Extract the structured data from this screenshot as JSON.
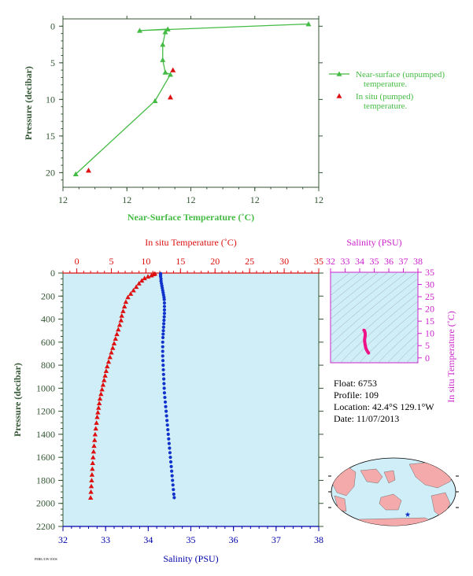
{
  "colors": {
    "near_surface": "#44bb44",
    "in_situ": "#dd1111",
    "salinity": "#1133cc",
    "salinity_axis": "#0000aa",
    "magenta": "#cc22cc",
    "pink_trace": "#ee1188",
    "axis_green": "#335533",
    "plot_bg": "#d0eef8",
    "land": "#f4aaaa",
    "ocean": "#d0eef8"
  },
  "info": {
    "float": "Float:  6753",
    "profile": "Profile:  109",
    "location": "Location:  42.4°S  129.1°W",
    "date": "Date:  11/07/2013"
  },
  "footer_tiny": "PMEL/UW IOOS",
  "chart_data": [
    {
      "id": "near_surface",
      "type": "line",
      "title": "",
      "xlabel": "Near-Surface Temperature (˚C)",
      "ylabel": "Pressure (decibar)",
      "x_tick_labels": [
        "12",
        "12",
        "12",
        "12",
        "12"
      ],
      "y_ticks": [
        0,
        5,
        10,
        15,
        20
      ],
      "xlim": [
        11.75,
        12.25
      ],
      "ylim": [
        22,
        -1
      ],
      "legend_position": "right",
      "series": [
        {
          "name": "Near-surface (unpumped) temperature.",
          "marker": "triangle",
          "line": true,
          "x": [
            12.23,
            11.9,
            11.955,
            11.95,
            11.945,
            11.945,
            11.95,
            11.96,
            11.93,
            11.775
          ],
          "y": [
            -0.3,
            0.6,
            0.4,
            0.8,
            2.5,
            4.6,
            6.3,
            6.6,
            10.2,
            20.2
          ]
        },
        {
          "name": "In situ (pumped) temperature.",
          "marker": "triangle",
          "line": false,
          "x": [
            11.965,
            11.96,
            11.8
          ],
          "y": [
            6.0,
            9.7,
            19.7
          ]
        }
      ]
    },
    {
      "id": "profile",
      "type": "scatter",
      "title": "",
      "ylabel": "Pressure (decibar)",
      "y_ticks": [
        0,
        200,
        400,
        600,
        800,
        1000,
        1200,
        1400,
        1600,
        1800,
        2000,
        2200
      ],
      "ylim": [
        0,
        2200
      ],
      "top_axis": {
        "label": "In situ Temperature (˚C)",
        "ticks": [
          0,
          5,
          10,
          15,
          20,
          25,
          30,
          35
        ],
        "range": [
          -2,
          35
        ]
      },
      "bottom_axis": {
        "label": "Salinity (PSU)",
        "ticks": [
          32,
          33,
          34,
          35,
          36,
          37,
          38
        ],
        "range": [
          32,
          38
        ]
      },
      "series": [
        {
          "name": "In situ Temperature",
          "axis": "top",
          "marker": "triangle",
          "points": [
            [
              11.3,
              5
            ],
            [
              11.1,
              10
            ],
            [
              10.8,
              20
            ],
            [
              10.3,
              30
            ],
            [
              9.8,
              45
            ],
            [
              9.4,
              65
            ],
            [
              9.0,
              90
            ],
            [
              8.6,
              120
            ],
            [
              8.2,
              150
            ],
            [
              7.8,
              180
            ],
            [
              7.4,
              210
            ],
            [
              7.1,
              250
            ],
            [
              6.9,
              290
            ],
            [
              6.7,
              330
            ],
            [
              6.5,
              370
            ],
            [
              6.4,
              410
            ],
            [
              6.2,
              450
            ],
            [
              6.0,
              490
            ],
            [
              5.8,
              530
            ],
            [
              5.6,
              570
            ],
            [
              5.4,
              610
            ],
            [
              5.2,
              650
            ],
            [
              5.0,
              690
            ],
            [
              4.8,
              730
            ],
            [
              4.6,
              770
            ],
            [
              4.4,
              810
            ],
            [
              4.25,
              850
            ],
            [
              4.1,
              890
            ],
            [
              3.95,
              930
            ],
            [
              3.8,
              970
            ],
            [
              3.65,
              1010
            ],
            [
              3.5,
              1050
            ],
            [
              3.35,
              1090
            ],
            [
              3.25,
              1130
            ],
            [
              3.15,
              1170
            ],
            [
              3.05,
              1210
            ],
            [
              2.95,
              1250
            ],
            [
              2.85,
              1300
            ],
            [
              2.75,
              1350
            ],
            [
              2.65,
              1400
            ],
            [
              2.58,
              1450
            ],
            [
              2.5,
              1500
            ],
            [
              2.43,
              1550
            ],
            [
              2.36,
              1600
            ],
            [
              2.3,
              1650
            ],
            [
              2.25,
              1700
            ],
            [
              2.2,
              1750
            ],
            [
              2.15,
              1800
            ],
            [
              2.1,
              1850
            ],
            [
              2.05,
              1900
            ],
            [
              2.0,
              1950
            ]
          ]
        },
        {
          "name": "Salinity",
          "axis": "bottom",
          "marker": "circle",
          "points": [
            [
              34.29,
              5
            ],
            [
              34.29,
              15
            ],
            [
              34.29,
              30
            ],
            [
              34.3,
              50
            ],
            [
              34.3,
              70
            ],
            [
              34.31,
              90
            ],
            [
              34.32,
              110
            ],
            [
              34.33,
              130
            ],
            [
              34.34,
              150
            ],
            [
              34.35,
              170
            ],
            [
              34.36,
              190
            ],
            [
              34.37,
              210
            ],
            [
              34.375,
              230
            ],
            [
              34.38,
              260
            ],
            [
              34.38,
              290
            ],
            [
              34.38,
              320
            ],
            [
              34.38,
              350
            ],
            [
              34.375,
              380
            ],
            [
              34.37,
              410
            ],
            [
              34.365,
              440
            ],
            [
              34.36,
              470
            ],
            [
              34.355,
              500
            ],
            [
              34.35,
              530
            ],
            [
              34.345,
              560
            ],
            [
              34.34,
              600
            ],
            [
              34.34,
              640
            ],
            [
              34.34,
              680
            ],
            [
              34.34,
              720
            ],
            [
              34.345,
              760
            ],
            [
              34.35,
              800
            ],
            [
              34.355,
              840
            ],
            [
              34.36,
              880
            ],
            [
              34.365,
              920
            ],
            [
              34.37,
              960
            ],
            [
              34.375,
              1000
            ],
            [
              34.38,
              1040
            ],
            [
              34.39,
              1080
            ],
            [
              34.4,
              1120
            ],
            [
              34.41,
              1160
            ],
            [
              34.42,
              1200
            ],
            [
              34.43,
              1240
            ],
            [
              34.44,
              1280
            ],
            [
              34.45,
              1320
            ],
            [
              34.46,
              1360
            ],
            [
              34.47,
              1400
            ],
            [
              34.48,
              1440
            ],
            [
              34.49,
              1480
            ],
            [
              34.5,
              1520
            ],
            [
              34.51,
              1560
            ],
            [
              34.52,
              1600
            ],
            [
              34.53,
              1640
            ],
            [
              34.54,
              1680
            ],
            [
              34.55,
              1720
            ],
            [
              34.56,
              1760
            ],
            [
              34.57,
              1800
            ],
            [
              34.58,
              1840
            ],
            [
              34.59,
              1880
            ],
            [
              34.6,
              1920
            ],
            [
              34.61,
              1950
            ]
          ]
        }
      ]
    },
    {
      "id": "ts_diagram",
      "type": "line",
      "title": "Salinity (PSU)",
      "xlabel": "Salinity (PSU)",
      "ylabel": "In situ Temperature (˚C)",
      "x_ticks": [
        32,
        33,
        34,
        35,
        36,
        37,
        38
      ],
      "y_ticks": [
        0,
        5,
        10,
        15,
        20,
        25,
        30,
        35
      ],
      "xlim": [
        32,
        38
      ],
      "ylim": [
        -2,
        35
      ],
      "series": [
        {
          "name": "T-S",
          "points": [
            [
              34.61,
              2.0
            ],
            [
              34.55,
              2.5
            ],
            [
              34.5,
              3.0
            ],
            [
              34.45,
              3.6
            ],
            [
              34.41,
              4.3
            ],
            [
              34.38,
              5.2
            ],
            [
              34.36,
              6.0
            ],
            [
              34.34,
              6.8
            ],
            [
              34.34,
              7.6
            ],
            [
              34.36,
              8.4
            ],
            [
              34.38,
              9.2
            ],
            [
              34.38,
              10.0
            ],
            [
              34.35,
              10.8
            ],
            [
              34.32,
              11.2
            ],
            [
              34.29,
              11.3
            ]
          ]
        }
      ]
    }
  ]
}
